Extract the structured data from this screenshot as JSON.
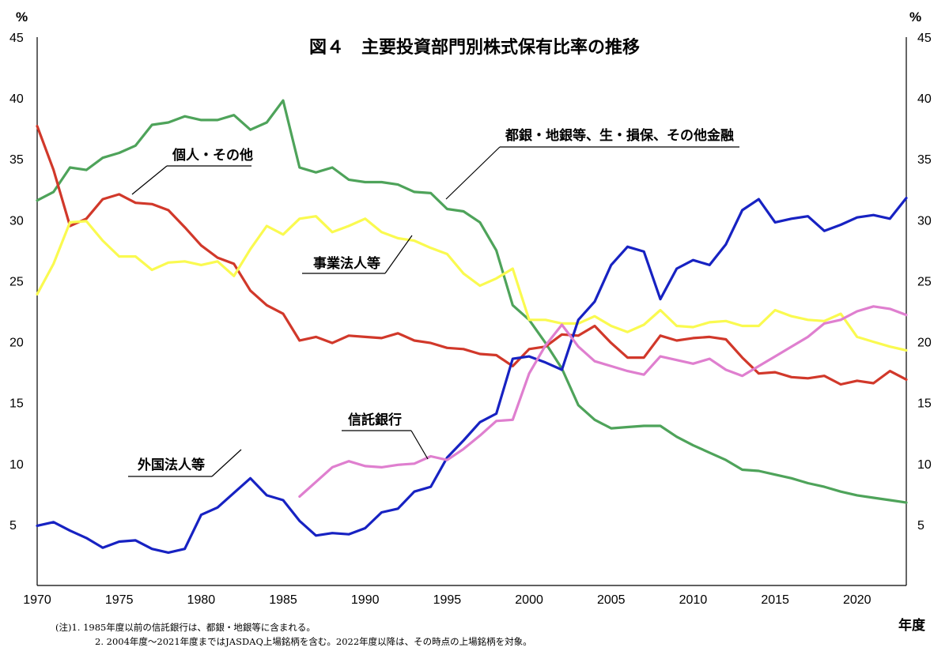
{
  "chart_data": {
    "type": "line",
    "title": "図４　主要投資部門別株式保有比率の推移",
    "ylabel_left": "%",
    "ylabel_right": "%",
    "xlabel": "年度",
    "xlim": [
      1970,
      2023
    ],
    "ylim": [
      0,
      45
    ],
    "x_ticks": [
      1970,
      1975,
      1980,
      1985,
      1990,
      1995,
      2000,
      2005,
      2010,
      2015,
      2020
    ],
    "y_ticks": [
      5,
      10,
      15,
      20,
      25,
      30,
      35,
      40,
      45
    ],
    "grid": false,
    "legend": "inline-labels",
    "series": [
      {
        "name": "都銀・地銀等、生・損保、その他金融",
        "color": "#4ea35a",
        "start": 1970,
        "values": [
          31.6,
          32.3,
          34.3,
          34.1,
          35.1,
          35.5,
          36.1,
          37.8,
          38.0,
          38.5,
          38.2,
          38.2,
          38.6,
          37.4,
          38.0,
          39.8,
          34.3,
          33.9,
          34.3,
          33.3,
          33.1,
          33.1,
          32.9,
          32.3,
          32.2,
          30.9,
          30.7,
          29.8,
          27.5,
          23.0,
          21.8,
          19.9,
          17.8,
          14.8,
          13.6,
          12.9,
          13.0,
          13.1,
          13.1,
          12.2,
          11.5,
          10.9,
          10.3,
          9.5,
          9.4,
          9.1,
          8.8,
          8.4,
          8.1,
          7.7,
          7.4,
          7.2,
          7.0,
          6.8
        ]
      },
      {
        "name": "個人・その他",
        "color": "#d1382a",
        "start": 1970,
        "values": [
          37.7,
          34.1,
          29.5,
          30.1,
          31.7,
          32.1,
          31.4,
          31.3,
          30.8,
          29.4,
          27.9,
          26.9,
          26.4,
          24.2,
          23.0,
          22.3,
          20.1,
          20.4,
          19.9,
          20.5,
          20.4,
          20.3,
          20.7,
          20.1,
          19.9,
          19.5,
          19.4,
          19.0,
          18.9,
          18.0,
          19.4,
          19.6,
          20.6,
          20.5,
          21.3,
          19.9,
          18.7,
          18.7,
          20.5,
          20.1,
          20.3,
          20.4,
          20.2,
          18.7,
          17.4,
          17.5,
          17.1,
          17.0,
          17.2,
          16.5,
          16.8,
          16.6,
          17.6,
          16.9
        ]
      },
      {
        "name": "事業法人等",
        "color": "#fafa50",
        "start": 1970,
        "values": [
          23.9,
          26.4,
          29.8,
          29.9,
          28.3,
          27.0,
          27.0,
          25.9,
          26.5,
          26.6,
          26.3,
          26.6,
          25.4,
          27.6,
          29.5,
          28.8,
          30.1,
          30.3,
          29.0,
          29.5,
          30.1,
          29.0,
          28.5,
          28.3,
          27.7,
          27.2,
          25.6,
          24.6,
          25.2,
          26.0,
          21.8,
          21.8,
          21.5,
          21.5,
          22.1,
          21.3,
          20.8,
          21.4,
          22.6,
          21.3,
          21.2,
          21.6,
          21.7,
          21.3,
          21.3,
          22.6,
          22.1,
          21.8,
          21.7,
          22.3,
          20.4,
          20.0,
          19.6,
          19.3
        ]
      },
      {
        "name": "外国法人等",
        "color": "#1722c2",
        "start": 1970,
        "values": [
          4.9,
          5.2,
          4.5,
          3.9,
          3.1,
          3.6,
          3.7,
          3.0,
          2.7,
          3.0,
          5.8,
          6.4,
          7.6,
          8.8,
          7.4,
          7.0,
          5.3,
          4.1,
          4.3,
          4.2,
          4.7,
          6.0,
          6.3,
          7.7,
          8.1,
          10.5,
          11.9,
          13.4,
          14.1,
          18.6,
          18.8,
          18.3,
          17.7,
          21.8,
          23.3,
          26.3,
          27.8,
          27.4,
          23.5,
          26.0,
          26.7,
          26.3,
          28.0,
          30.8,
          31.7,
          29.8,
          30.1,
          30.3,
          29.1,
          29.6,
          30.2,
          30.4,
          30.1,
          31.8
        ]
      },
      {
        "name": "信託銀行",
        "color": "#df7fcf",
        "start": 1986,
        "values": [
          7.3,
          8.5,
          9.7,
          10.2,
          9.8,
          9.7,
          9.9,
          10.0,
          10.6,
          10.3,
          11.2,
          12.3,
          13.5,
          13.6,
          17.4,
          19.7,
          21.4,
          19.6,
          18.4,
          18.0,
          17.6,
          17.3,
          18.8,
          18.5,
          18.2,
          18.6,
          17.7,
          17.2,
          18.0,
          18.8,
          19.6,
          20.4,
          21.5,
          21.8,
          22.5,
          22.9,
          22.7,
          22.2
        ]
      }
    ],
    "annotations": [
      {
        "series": 0,
        "text": "都銀・地銀等、生・損保、その他金融"
      },
      {
        "series": 1,
        "text": "個人・その他"
      },
      {
        "series": 2,
        "text": "事業法人等"
      },
      {
        "series": 3,
        "text": "外国法人等"
      },
      {
        "series": 4,
        "text": "信託銀行"
      }
    ],
    "notes": [
      "(注)1. 1985年度以前の信託銀行は、都銀・地銀等に含まれる。",
      "2. 2004年度～2021年度まではJASDAQ上場銘柄を含む。2022年度以降は、その時点の上場銘柄を対象。"
    ]
  }
}
